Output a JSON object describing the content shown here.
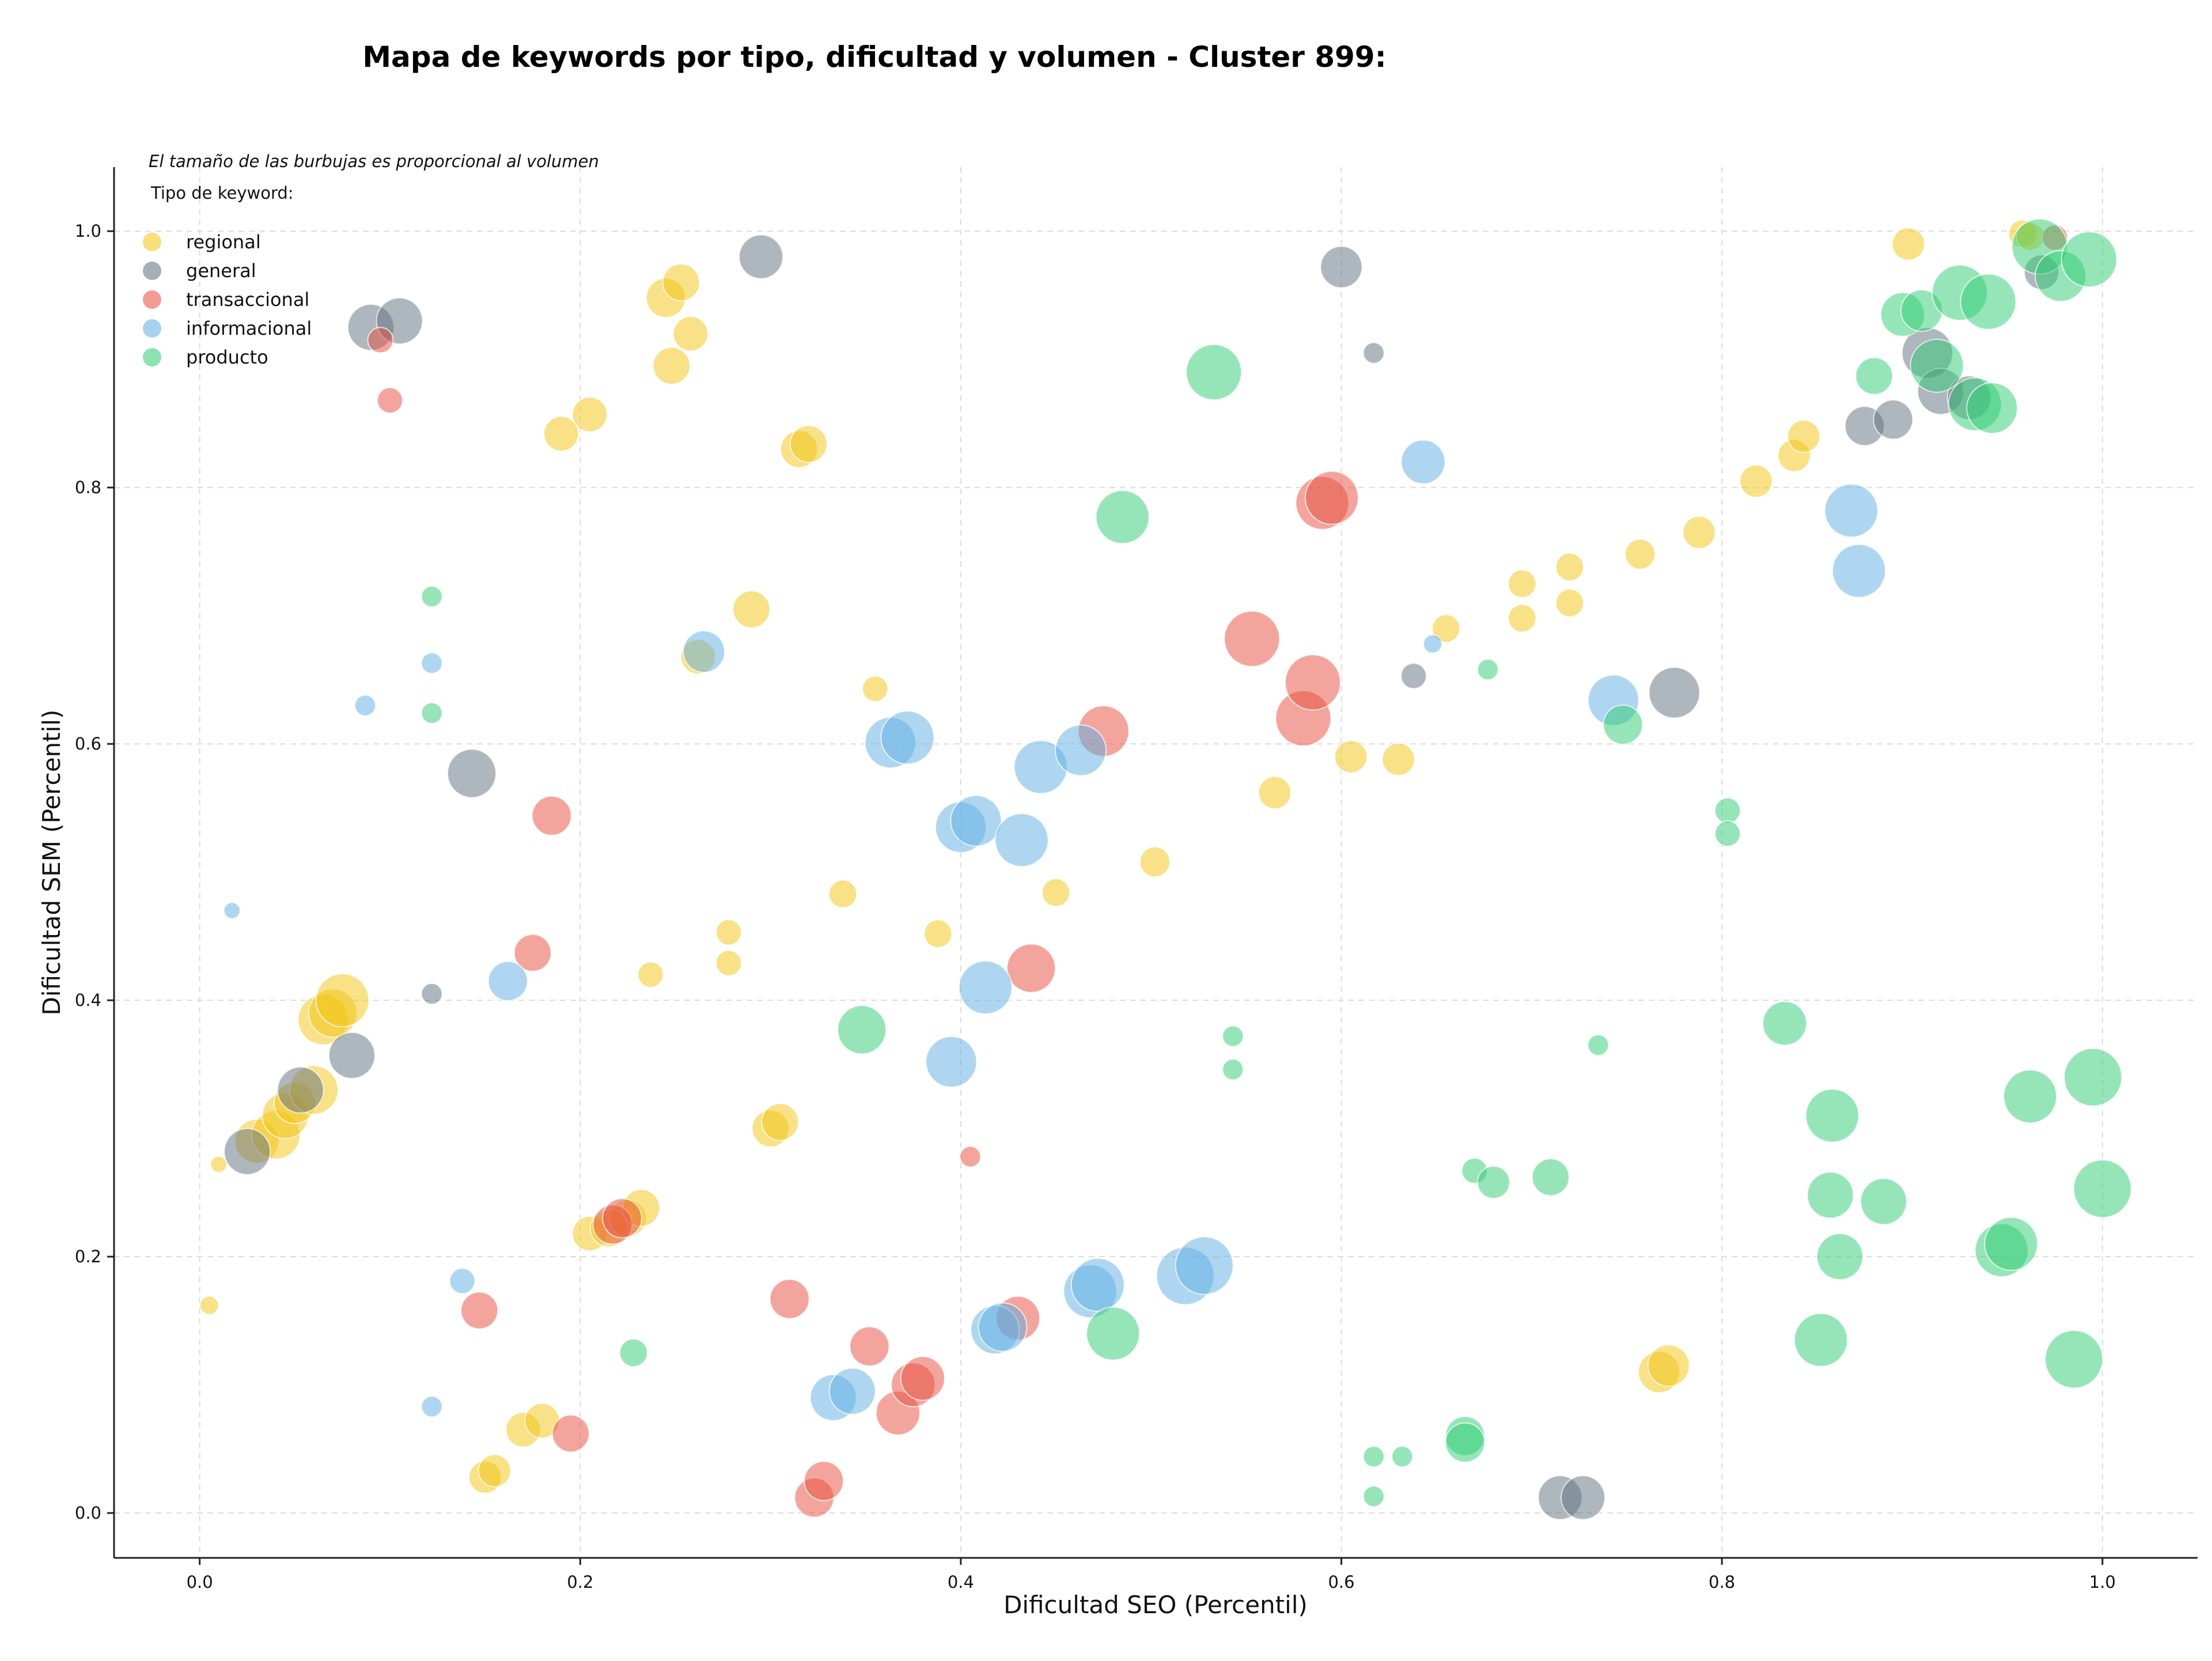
{
  "chart_data": {
    "type": "scatter",
    "title": "Mapa de keywords por tipo, dificultad y volumen - Cluster 899:",
    "xlabel": "Dificultad SEO (Percentil)",
    "ylabel": "Dificultad SEM (Percentil)",
    "xlim": [
      -0.045,
      1.05
    ],
    "ylim": [
      -0.035,
      1.05
    ],
    "xticks": [
      "0.0",
      "0.2",
      "0.4",
      "0.6",
      "0.8",
      "1.0"
    ],
    "yticks": [
      "0.0",
      "0.2",
      "0.4",
      "0.6",
      "0.8",
      "1.0"
    ],
    "grid": true,
    "legend_title": "Tipo de keyword:",
    "legend_placement": "top-left",
    "size_note": "El tamaño de las burbujas es proporcional al volumen",
    "series": [
      {
        "name": "regional",
        "color": "#F1C40F",
        "points": [
          [
            0.005,
            0.162,
            16
          ],
          [
            0.01,
            0.272,
            14
          ],
          [
            0.03,
            0.29,
            38
          ],
          [
            0.04,
            0.295,
            42
          ],
          [
            0.045,
            0.31,
            40
          ],
          [
            0.05,
            0.32,
            36
          ],
          [
            0.06,
            0.33,
            42
          ],
          [
            0.065,
            0.385,
            44
          ],
          [
            0.07,
            0.39,
            42
          ],
          [
            0.075,
            0.4,
            46
          ],
          [
            0.15,
            0.028,
            28
          ],
          [
            0.155,
            0.033,
            28
          ],
          [
            0.17,
            0.065,
            30
          ],
          [
            0.18,
            0.072,
            30
          ],
          [
            0.19,
            0.842,
            30
          ],
          [
            0.205,
            0.857,
            30
          ],
          [
            0.205,
            0.218,
            30
          ],
          [
            0.215,
            0.222,
            32
          ],
          [
            0.225,
            0.23,
            32
          ],
          [
            0.232,
            0.238,
            32
          ],
          [
            0.237,
            0.42,
            22
          ],
          [
            0.245,
            0.948,
            34
          ],
          [
            0.248,
            0.895,
            32
          ],
          [
            0.253,
            0.96,
            32
          ],
          [
            0.258,
            0.92,
            30
          ],
          [
            0.262,
            0.668,
            30
          ],
          [
            0.278,
            0.453,
            22
          ],
          [
            0.278,
            0.429,
            22
          ],
          [
            0.29,
            0.705,
            32
          ],
          [
            0.3,
            0.3,
            32
          ],
          [
            0.305,
            0.305,
            32
          ],
          [
            0.315,
            0.83,
            32
          ],
          [
            0.32,
            0.834,
            32
          ],
          [
            0.338,
            0.483,
            24
          ],
          [
            0.355,
            0.643,
            22
          ],
          [
            0.388,
            0.452,
            24
          ],
          [
            0.45,
            0.484,
            24
          ],
          [
            0.502,
            0.508,
            26
          ],
          [
            0.565,
            0.562,
            28
          ],
          [
            0.605,
            0.59,
            28
          ],
          [
            0.63,
            0.588,
            28
          ],
          [
            0.655,
            0.69,
            24
          ],
          [
            0.695,
            0.725,
            24
          ],
          [
            0.695,
            0.698,
            24
          ],
          [
            0.72,
            0.738,
            24
          ],
          [
            0.72,
            0.71,
            24
          ],
          [
            0.757,
            0.748,
            26
          ],
          [
            0.767,
            0.11,
            36
          ],
          [
            0.772,
            0.115,
            36
          ],
          [
            0.788,
            0.765,
            28
          ],
          [
            0.818,
            0.805,
            28
          ],
          [
            0.838,
            0.825,
            28
          ],
          [
            0.843,
            0.84,
            28
          ],
          [
            0.898,
            0.99,
            28
          ],
          [
            0.958,
            0.998,
            24
          ],
          [
            0.962,
            0.996,
            24
          ]
        ]
      },
      {
        "name": "general",
        "color": "#5D6D7E",
        "points": [
          [
            0.025,
            0.282,
            40
          ],
          [
            0.053,
            0.33,
            40
          ],
          [
            0.08,
            0.357,
            40
          ],
          [
            0.09,
            0.925,
            40
          ],
          [
            0.105,
            0.93,
            40
          ],
          [
            0.122,
            0.405,
            18
          ],
          [
            0.143,
            0.577,
            42
          ],
          [
            0.295,
            0.98,
            38
          ],
          [
            0.6,
            0.972,
            36
          ],
          [
            0.617,
            0.905,
            18
          ],
          [
            0.638,
            0.653,
            22
          ],
          [
            0.715,
            0.012,
            38
          ],
          [
            0.727,
            0.012,
            38
          ],
          [
            0.775,
            0.64,
            44
          ],
          [
            0.875,
            0.848,
            34
          ],
          [
            0.89,
            0.853,
            34
          ],
          [
            0.908,
            0.905,
            44
          ],
          [
            0.915,
            0.875,
            40
          ],
          [
            0.93,
            0.87,
            38
          ],
          [
            0.968,
            0.968,
            30
          ]
        ]
      },
      {
        "name": "transaccional",
        "color": "#E74C3C",
        "points": [
          [
            0.1,
            0.868,
            22
          ],
          [
            0.095,
            0.915,
            22
          ],
          [
            0.147,
            0.158,
            32
          ],
          [
            0.175,
            0.437,
            32
          ],
          [
            0.185,
            0.544,
            34
          ],
          [
            0.195,
            0.062,
            32
          ],
          [
            0.217,
            0.225,
            34
          ],
          [
            0.222,
            0.23,
            34
          ],
          [
            0.31,
            0.167,
            34
          ],
          [
            0.323,
            0.012,
            34
          ],
          [
            0.328,
            0.025,
            34
          ],
          [
            0.352,
            0.13,
            34
          ],
          [
            0.367,
            0.078,
            38
          ],
          [
            0.375,
            0.1,
            38
          ],
          [
            0.38,
            0.105,
            38
          ],
          [
            0.405,
            0.278,
            18
          ],
          [
            0.43,
            0.152,
            38
          ],
          [
            0.437,
            0.425,
            42
          ],
          [
            0.475,
            0.61,
            44
          ],
          [
            0.553,
            0.682,
            48
          ],
          [
            0.58,
            0.62,
            48
          ],
          [
            0.585,
            0.648,
            48
          ],
          [
            0.59,
            0.788,
            46
          ],
          [
            0.595,
            0.792,
            46
          ],
          [
            0.975,
            0.995,
            22
          ]
        ]
      },
      {
        "name": "informacional",
        "color": "#5DADE2",
        "points": [
          [
            0.017,
            0.47,
            14
          ],
          [
            0.087,
            0.63,
            18
          ],
          [
            0.122,
            0.663,
            18
          ],
          [
            0.122,
            0.083,
            18
          ],
          [
            0.138,
            0.181,
            22
          ],
          [
            0.162,
            0.415,
            34
          ],
          [
            0.265,
            0.672,
            36
          ],
          [
            0.333,
            0.09,
            40
          ],
          [
            0.343,
            0.095,
            40
          ],
          [
            0.363,
            0.601,
            44
          ],
          [
            0.372,
            0.605,
            46
          ],
          [
            0.395,
            0.352,
            44
          ],
          [
            0.4,
            0.535,
            44
          ],
          [
            0.408,
            0.54,
            44
          ],
          [
            0.413,
            0.41,
            46
          ],
          [
            0.418,
            0.143,
            42
          ],
          [
            0.422,
            0.145,
            42
          ],
          [
            0.432,
            0.525,
            46
          ],
          [
            0.442,
            0.582,
            46
          ],
          [
            0.463,
            0.595,
            44
          ],
          [
            0.468,
            0.173,
            46
          ],
          [
            0.472,
            0.178,
            46
          ],
          [
            0.518,
            0.185,
            50
          ],
          [
            0.528,
            0.193,
            50
          ],
          [
            0.643,
            0.82,
            38
          ],
          [
            0.648,
            0.678,
            16
          ],
          [
            0.743,
            0.634,
            44
          ],
          [
            0.868,
            0.782,
            46
          ],
          [
            0.872,
            0.735,
            46
          ]
        ]
      },
      {
        "name": "producto",
        "color": "#2ECC71",
        "points": [
          [
            0.122,
            0.715,
            18
          ],
          [
            0.122,
            0.624,
            18
          ],
          [
            0.228,
            0.125,
            24
          ],
          [
            0.348,
            0.377,
            42
          ],
          [
            0.48,
            0.14,
            46
          ],
          [
            0.485,
            0.777,
            46
          ],
          [
            0.533,
            0.89,
            48
          ],
          [
            0.543,
            0.372,
            18
          ],
          [
            0.543,
            0.346,
            18
          ],
          [
            0.617,
            0.044,
            18
          ],
          [
            0.617,
            0.013,
            18
          ],
          [
            0.632,
            0.044,
            18
          ],
          [
            0.665,
            0.06,
            34
          ],
          [
            0.665,
            0.055,
            34
          ],
          [
            0.67,
            0.267,
            22
          ],
          [
            0.677,
            0.658,
            18
          ],
          [
            0.68,
            0.258,
            28
          ],
          [
            0.71,
            0.262,
            32
          ],
          [
            0.735,
            0.365,
            18
          ],
          [
            0.748,
            0.615,
            34
          ],
          [
            0.803,
            0.548,
            22
          ],
          [
            0.803,
            0.53,
            22
          ],
          [
            0.833,
            0.382,
            38
          ],
          [
            0.852,
            0.135,
            46
          ],
          [
            0.857,
            0.248,
            40
          ],
          [
            0.858,
            0.31,
            46
          ],
          [
            0.862,
            0.2,
            40
          ],
          [
            0.88,
            0.887,
            32
          ],
          [
            0.885,
            0.243,
            40
          ],
          [
            0.895,
            0.935,
            38
          ],
          [
            0.905,
            0.938,
            36
          ],
          [
            0.913,
            0.895,
            46
          ],
          [
            0.925,
            0.952,
            48
          ],
          [
            0.933,
            0.865,
            46
          ],
          [
            0.94,
            0.945,
            48
          ],
          [
            0.942,
            0.862,
            44
          ],
          [
            0.947,
            0.205,
            46
          ],
          [
            0.952,
            0.21,
            46
          ],
          [
            0.962,
            0.325,
            46
          ],
          [
            0.967,
            0.988,
            48
          ],
          [
            0.978,
            0.965,
            44
          ],
          [
            0.985,
            0.12,
            50
          ],
          [
            0.993,
            0.978,
            48
          ],
          [
            0.995,
            0.34,
            50
          ],
          [
            1.0,
            0.253,
            50
          ]
        ]
      }
    ]
  }
}
